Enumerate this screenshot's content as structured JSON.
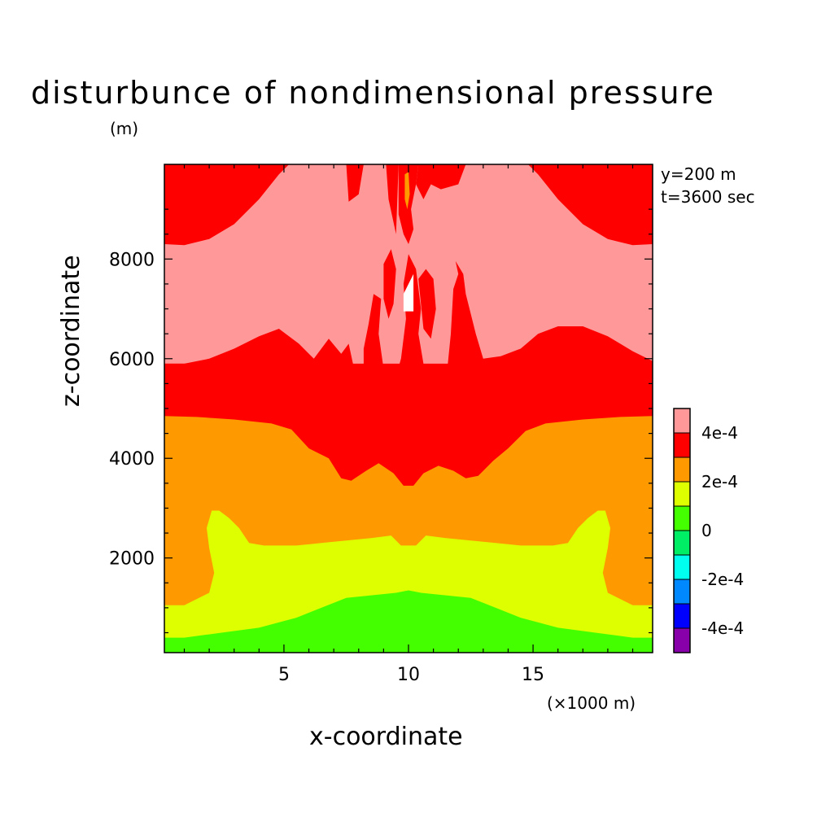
{
  "title": "disturbunce of nondimensional pressure",
  "info": {
    "y_line": "y=200 m",
    "t_line": "t=3600 sec"
  },
  "chart_data": {
    "type": "heatmap",
    "title": "disturbunce of nondimensional pressure",
    "xlabel": "x-coordinate",
    "ylabel": "z-coordinate",
    "x_unit": "(×1000 m)",
    "y_unit": "(m)",
    "xlim": [
      0.2,
      19.8
    ],
    "ylim": [
      100,
      9900
    ],
    "x_ticks": [
      5,
      10,
      15
    ],
    "y_ticks": [
      2000,
      4000,
      6000,
      8000
    ],
    "grid": false,
    "legend_position": "right",
    "colorbar": {
      "levels": [
        {
          "color": "#ff9999",
          "label": "4e-4"
        },
        {
          "color": "#ff0000",
          "label": ""
        },
        {
          "color": "#ff9900",
          "label": "2e-4"
        },
        {
          "color": "#ddff00",
          "label": ""
        },
        {
          "color": "#44ff00",
          "label": "0"
        },
        {
          "color": "#00ee66",
          "label": ""
        },
        {
          "color": "#00ffee",
          "label": "-2e-4"
        },
        {
          "color": "#0088ff",
          "label": ""
        },
        {
          "color": "#0000ff",
          "label": "-4e-4"
        },
        {
          "color": "#8800aa",
          "label": ""
        }
      ]
    },
    "regions": [
      {
        "level": "green",
        "color": "#44ff00",
        "z_bottom_edge": 100,
        "z_top_center": 1350,
        "z_top_sides": 400
      },
      {
        "level": "yellow",
        "color": "#ddff00",
        "z_top_center": 2250,
        "z_top_sides": 1050
      },
      {
        "level": "orange",
        "color": "#ff9900",
        "z_top_center": 3400,
        "z_top_sides": 4850
      },
      {
        "level": "red",
        "color": "#ff0000",
        "z_top_sides": 5900
      },
      {
        "level": "light-red",
        "color": "#ff9999",
        "z_top_sides": 8300
      },
      {
        "level": "red-top",
        "color": "#ff0000",
        "z_top": 9900
      },
      {
        "level": "white-patch",
        "color": "#ffffff",
        "x": 10,
        "z": 7200
      }
    ]
  }
}
